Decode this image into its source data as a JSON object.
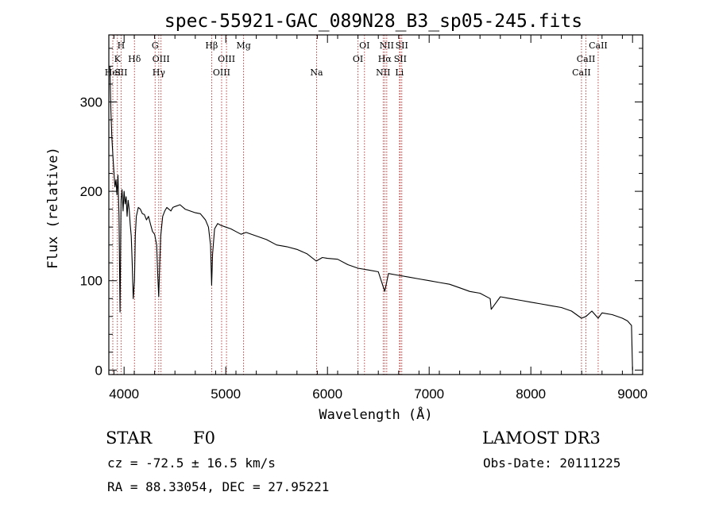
{
  "chart_data": {
    "type": "line",
    "title": "spec-55921-GAC_089N28_B3_sp05-245.fits",
    "xlabel": "Wavelength (Å)",
    "ylabel": "Flux (relative)",
    "xlim": [
      3850,
      9100
    ],
    "ylim": [
      -5,
      375
    ],
    "xticks": [
      4000,
      5000,
      6000,
      7000,
      8000,
      9000
    ],
    "yticks": [
      0,
      100,
      200,
      300
    ],
    "series": [
      {
        "name": "flux",
        "x": [
          3860,
          3870,
          3880,
          3890,
          3900,
          3910,
          3920,
          3930,
          3940,
          3950,
          3960,
          3970,
          3980,
          3990,
          4000,
          4010,
          4020,
          4030,
          4040,
          4050,
          4060,
          4070,
          4080,
          4090,
          4102,
          4110,
          4120,
          4140,
          4160,
          4180,
          4200,
          4220,
          4240,
          4260,
          4280,
          4300,
          4320,
          4330,
          4341,
          4350,
          4360,
          4380,
          4400,
          4420,
          4440,
          4460,
          4480,
          4500,
          4550,
          4600,
          4650,
          4700,
          4750,
          4800,
          4830,
          4850,
          4861,
          4870,
          4890,
          4920,
          4950,
          5000,
          5050,
          5100,
          5150,
          5200,
          5300,
          5400,
          5500,
          5600,
          5700,
          5800,
          5890,
          5950,
          6000,
          6100,
          6200,
          6300,
          6400,
          6500,
          6563,
          6600,
          6700,
          6800,
          6900,
          7000,
          7100,
          7200,
          7300,
          7400,
          7500,
          7600,
          7610,
          7700,
          7800,
          7900,
          8000,
          8100,
          8200,
          8300,
          8400,
          8498,
          8542,
          8600,
          8662,
          8700,
          8800,
          8900,
          8950,
          8990,
          9000
        ],
        "values": [
          340,
          290,
          260,
          240,
          222,
          205,
          213,
          196,
          218,
          172,
          65,
          190,
          202,
          178,
          200,
          186,
          194,
          172,
          190,
          180,
          163,
          150,
          120,
          80,
          100,
          150,
          172,
          182,
          180,
          175,
          174,
          168,
          172,
          163,
          155,
          152,
          140,
          110,
          82,
          118,
          150,
          172,
          178,
          182,
          180,
          178,
          182,
          183,
          185,
          180,
          178,
          176,
          175,
          168,
          160,
          140,
          95,
          130,
          158,
          164,
          162,
          160,
          158,
          155,
          152,
          154,
          150,
          146,
          140,
          138,
          135,
          130,
          122,
          126,
          125,
          124,
          118,
          114,
          112,
          110,
          88,
          108,
          106,
          104,
          102,
          100,
          98,
          96,
          92,
          88,
          86,
          80,
          68,
          82,
          80,
          78,
          76,
          74,
          72,
          70,
          66,
          58,
          60,
          66,
          58,
          64,
          62,
          58,
          55,
          50,
          0
        ]
      }
    ],
    "line_labels": [
      {
        "text": "H",
        "row": 1,
        "x": 3970
      },
      {
        "text": "K",
        "row": 2,
        "x": 3934
      },
      {
        "text": "HeI",
        "row": 3,
        "x": 3889
      },
      {
        "text": "SII",
        "row": 3,
        "x": 3970
      },
      {
        "text": "Hδ",
        "row": 2,
        "x": 4102
      },
      {
        "text": "G",
        "row": 1,
        "x": 4305
      },
      {
        "text": "OIII",
        "row": 2,
        "x": 4363
      },
      {
        "text": "Hγ",
        "row": 3,
        "x": 4341
      },
      {
        "text": "Hβ",
        "row": 1,
        "x": 4861
      },
      {
        "text": "OIII",
        "row": 2,
        "x": 5007
      },
      {
        "text": "OIII",
        "row": 3,
        "x": 4959
      },
      {
        "text": "Mg",
        "row": 1,
        "x": 5175
      },
      {
        "text": "Na",
        "row": 3,
        "x": 5893
      },
      {
        "text": "OI",
        "row": 1,
        "x": 6364
      },
      {
        "text": "OI",
        "row": 2,
        "x": 6300
      },
      {
        "text": "NII",
        "row": 1,
        "x": 6583
      },
      {
        "text": "SII",
        "row": 1,
        "x": 6731
      },
      {
        "text": "Hα",
        "row": 2,
        "x": 6563
      },
      {
        "text": "SII",
        "row": 2,
        "x": 6716
      },
      {
        "text": "NII",
        "row": 3,
        "x": 6548
      },
      {
        "text": "Li",
        "row": 3,
        "x": 6708
      },
      {
        "text": "CaII",
        "row": 1,
        "x": 8662
      },
      {
        "text": "CaII",
        "row": 2,
        "x": 8542
      },
      {
        "text": "CaII",
        "row": 3,
        "x": 8498
      }
    ],
    "line_markers": [
      3889,
      3934,
      3970,
      4102,
      4305,
      4341,
      4363,
      4861,
      4959,
      5007,
      5175,
      5893,
      6300,
      6364,
      6548,
      6563,
      6583,
      6708,
      6716,
      6731,
      8498,
      8542,
      8662
    ],
    "marker_color": "#b03030",
    "grid": false
  },
  "info": {
    "object_class": "STAR",
    "subclass": "F0",
    "survey": "LAMOST DR3",
    "redshift": "cz = -72.5 ± 16.5 km/s",
    "obs_date": "Obs-Date: 20111225",
    "coords": "RA =  88.33054, DEC =  27.95221"
  }
}
